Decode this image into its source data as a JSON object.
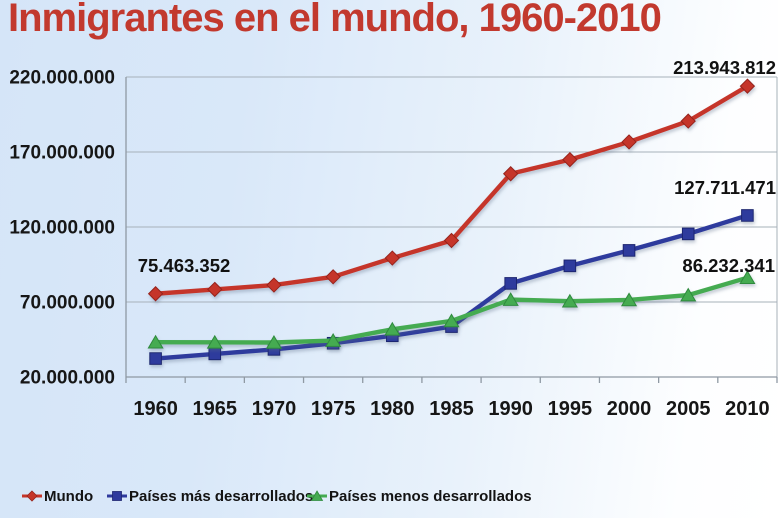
{
  "title": "Inmigrantes en el mundo, 1960-2010",
  "chart_data": {
    "type": "line",
    "title": "Inmigrantes en el mundo, 1960-2010",
    "categories": [
      "1960",
      "1965",
      "1970",
      "1975",
      "1980",
      "1985",
      "1990",
      "1995",
      "2000",
      "2005",
      "2010"
    ],
    "y_axis": {
      "tick_labels": [
        "220.000.000",
        "170.000.000",
        "120.000.000",
        "70.000.000",
        "20.000.000"
      ],
      "tick_values_millions": [
        220,
        170,
        120,
        70,
        20
      ],
      "min_millions": 20,
      "max_millions": 220,
      "unit": "personas"
    },
    "grid": "horizontal",
    "legend_position": "bottom",
    "series": [
      {
        "name": "Mundo",
        "color": "#c5362a",
        "marker": "diamond",
        "values_millions": [
          75.5,
          78.4,
          81.3,
          86.8,
          99.3,
          111.0,
          155.5,
          164.9,
          176.7,
          190.6,
          213.9
        ]
      },
      {
        "name": "Países más desarrollados",
        "color": "#2e3a9d",
        "marker": "square",
        "values_millions": [
          32.3,
          35.4,
          38.4,
          42.5,
          47.5,
          53.6,
          82.4,
          94.1,
          104.4,
          115.4,
          127.7
        ]
      },
      {
        "name": "Países menos desarrollados",
        "color": "#45ab51",
        "marker": "triangle",
        "values_millions": [
          43.2,
          43.1,
          43.0,
          44.3,
          51.8,
          57.4,
          71.6,
          70.5,
          71.4,
          74.6,
          86.2
        ]
      }
    ],
    "point_labels": [
      {
        "text": "75.463.352",
        "series": "Mundo",
        "category": "1960"
      },
      {
        "text": "213.943.812",
        "series": "Mundo",
        "category": "2010"
      },
      {
        "text": "127.711.471",
        "series": "Países más desarrollados",
        "category": "2010"
      },
      {
        "text": "86.232.341",
        "series": "Países menos desarrollados",
        "category": "2010"
      }
    ]
  },
  "colors": {
    "title": "#c2392e",
    "axis_text": "#161616",
    "gridline": "#a7b1ba",
    "axis_line": "#8f99a3",
    "marker_stroke": {
      "diamond": "#96241b",
      "square": "#1e2670",
      "triangle": "#2e8a3c"
    },
    "background_left": "#d5e5f8",
    "background_right": "#ffffff"
  }
}
